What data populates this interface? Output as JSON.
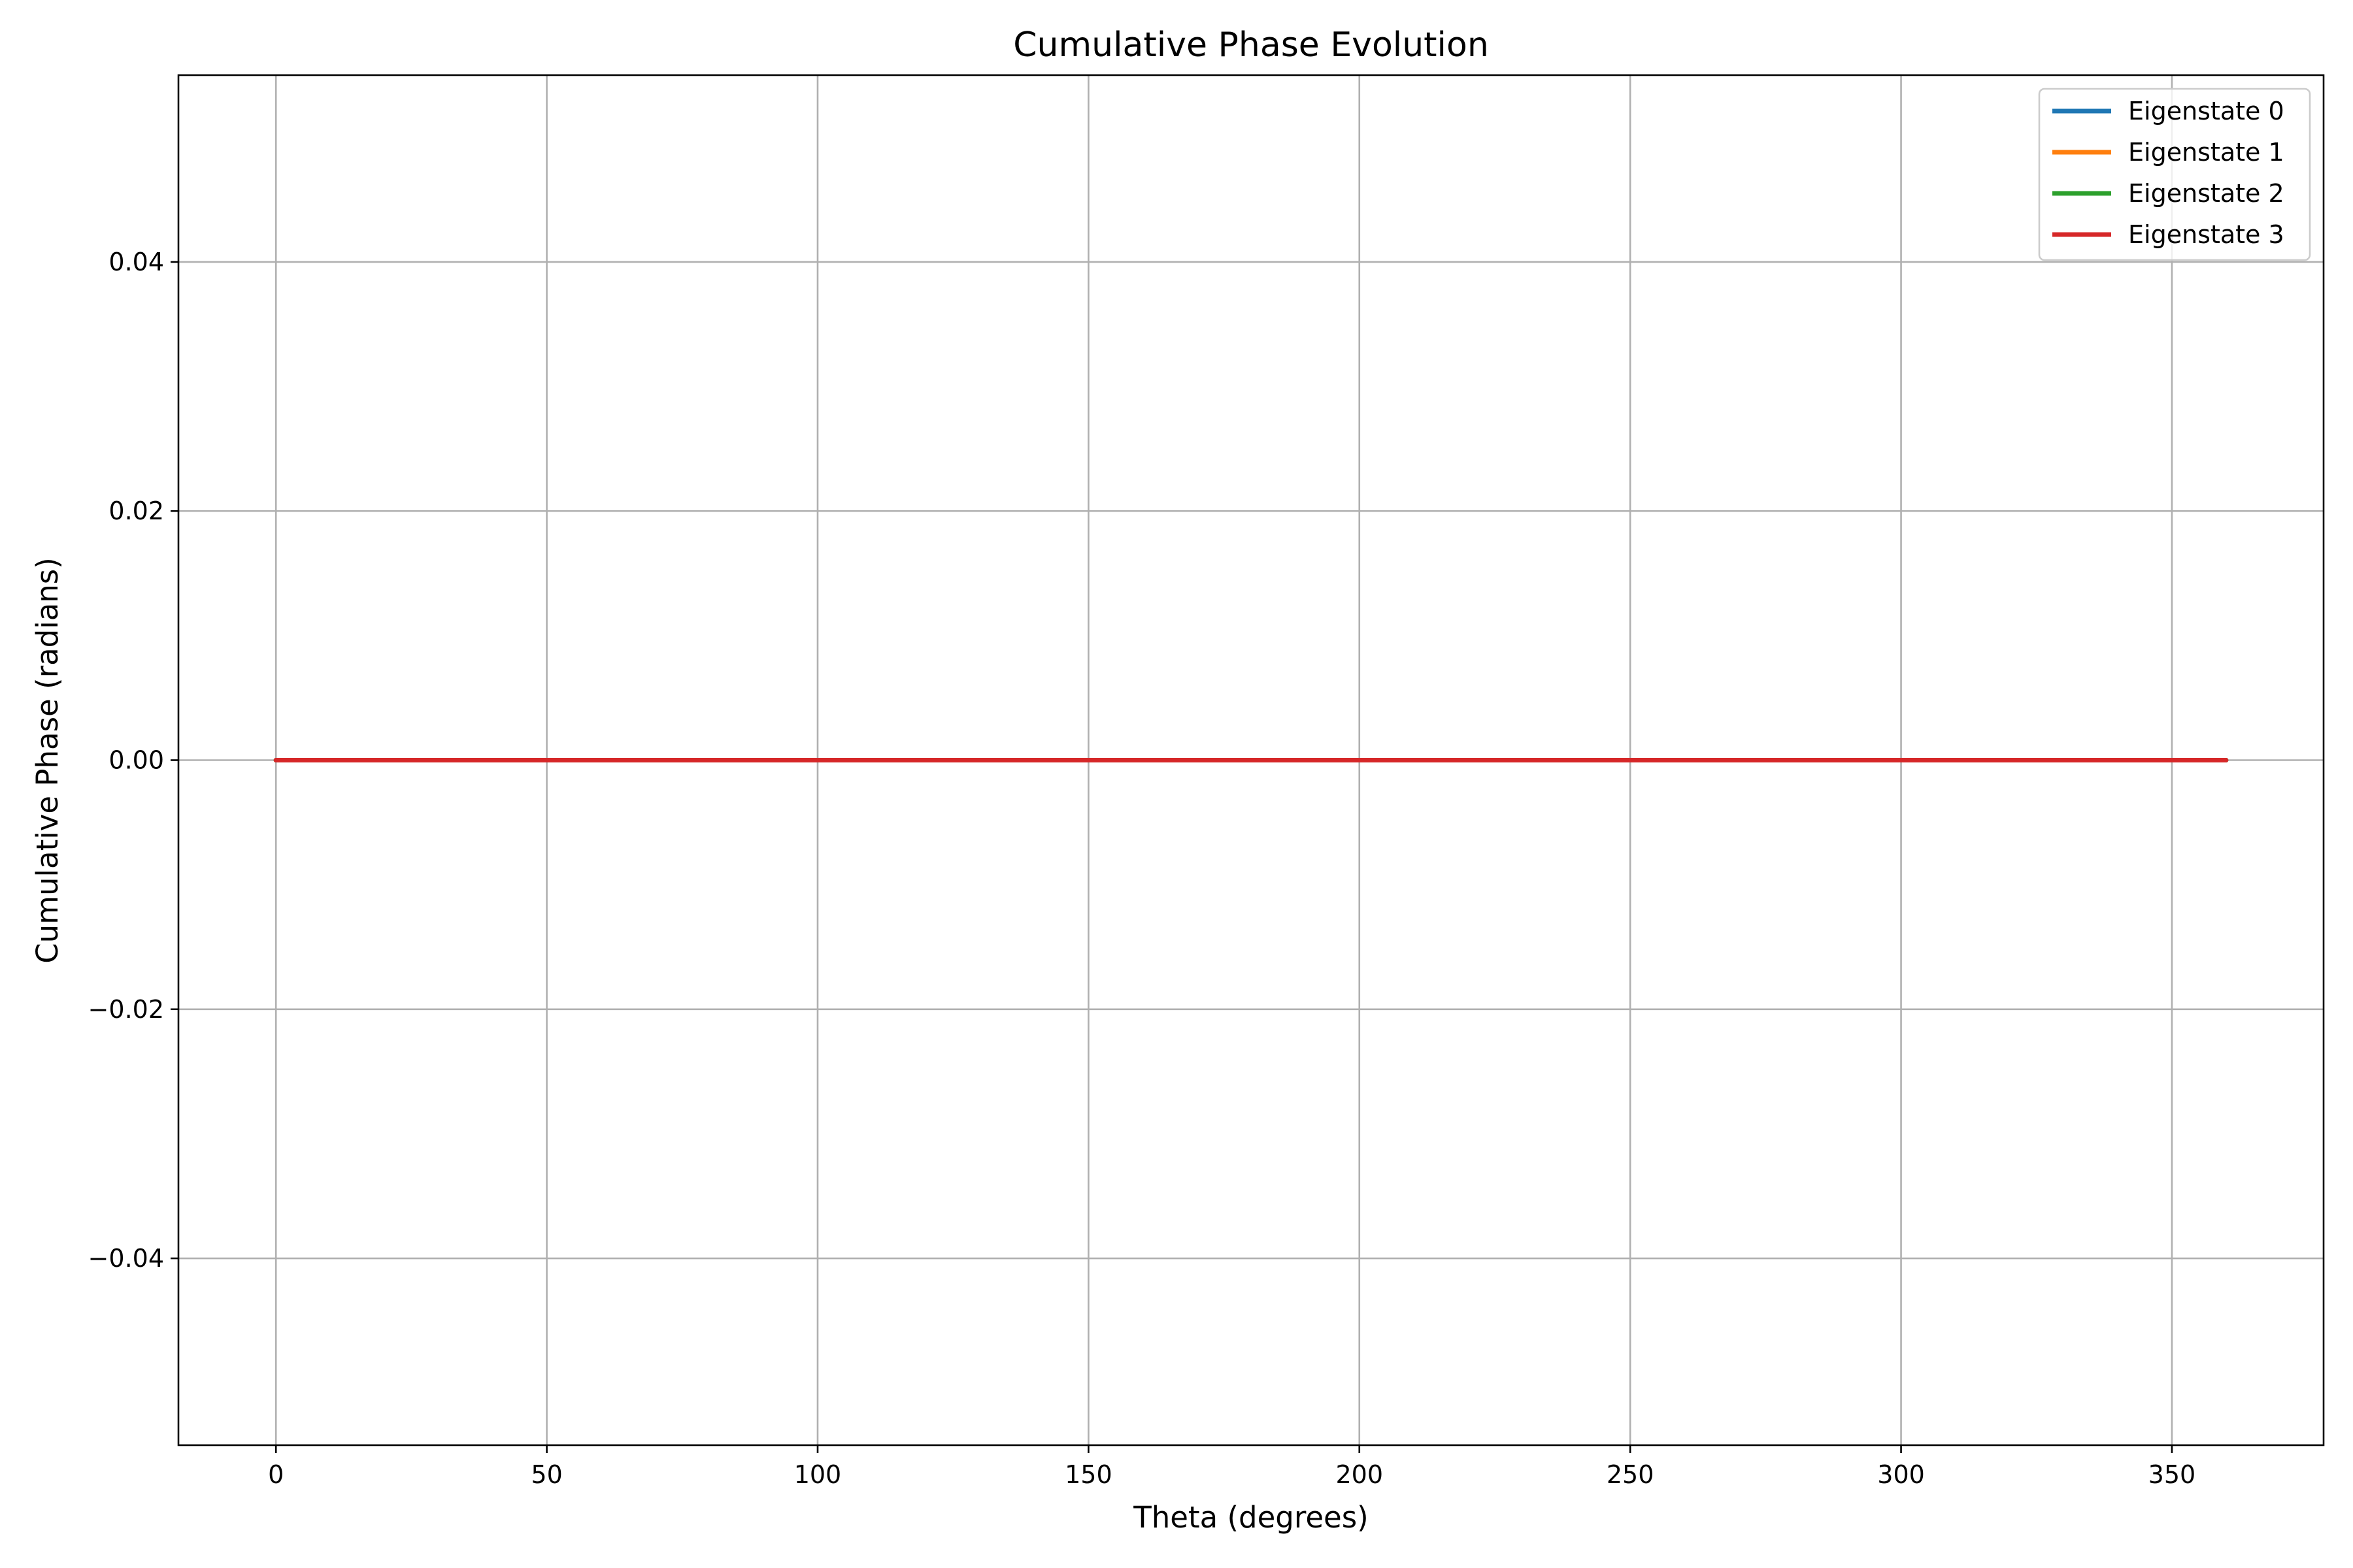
{
  "chart_data": {
    "type": "line",
    "title": "Cumulative Phase Evolution",
    "xlabel": "Theta (degrees)",
    "ylabel": "Cumulative Phase (radians)",
    "xlim": [
      -18,
      378
    ],
    "ylim": [
      -0.055,
      0.055
    ],
    "xticks": [
      0,
      50,
      100,
      150,
      200,
      250,
      300,
      350
    ],
    "yticks": [
      -0.04,
      -0.02,
      0.0,
      0.02,
      0.04
    ],
    "xtick_labels": [
      "0",
      "50",
      "100",
      "150",
      "200",
      "250",
      "300",
      "350"
    ],
    "ytick_labels": [
      "−0.04",
      "−0.02",
      "0.00",
      "0.02",
      "0.04"
    ],
    "grid": true,
    "legend_position": "top-right",
    "series": [
      {
        "name": "Eigenstate 0",
        "color": "#1f77b4",
        "x": [
          0,
          360
        ],
        "y": [
          0,
          0
        ]
      },
      {
        "name": "Eigenstate 1",
        "color": "#ff7f0e",
        "x": [
          0,
          360
        ],
        "y": [
          0,
          0
        ]
      },
      {
        "name": "Eigenstate 2",
        "color": "#2ca02c",
        "x": [
          0,
          360
        ],
        "y": [
          0,
          0
        ]
      },
      {
        "name": "Eigenstate 3",
        "color": "#d62728",
        "x": [
          0,
          360
        ],
        "y": [
          0,
          0
        ]
      }
    ]
  }
}
